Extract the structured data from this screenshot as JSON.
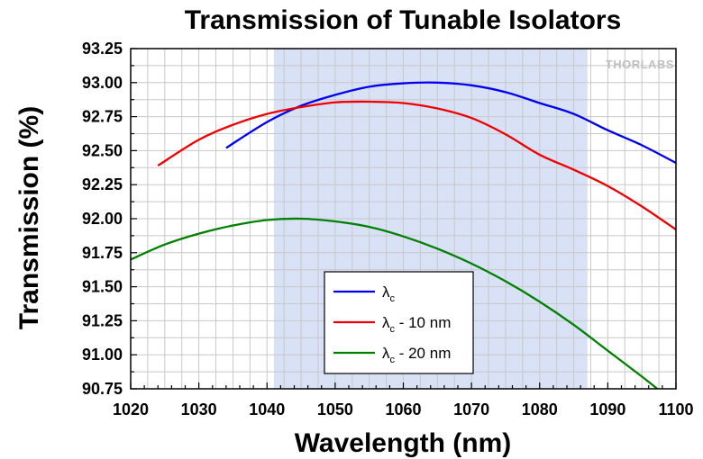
{
  "logo": "THORLABS",
  "chart_data": {
    "type": "line",
    "title": "Transmission of Tunable Isolators",
    "xlabel": "Wavelength (nm)",
    "ylabel": "Transmission (%)",
    "xlim": [
      1020,
      1100
    ],
    "ylim": [
      90.75,
      93.25
    ],
    "xticks": [
      1020,
      1030,
      1040,
      1050,
      1060,
      1070,
      1080,
      1090,
      1100
    ],
    "yticks": [
      "90.75",
      "91.00",
      "91.25",
      "91.50",
      "91.75",
      "92.00",
      "92.25",
      "92.50",
      "92.75",
      "93.00",
      "93.25"
    ],
    "grid": true,
    "highlight_band": {
      "x_start": 1041,
      "x_end": 1087,
      "color": "#d9e1f7"
    },
    "legend_position": "bottom-center",
    "series": [
      {
        "name": "λc",
        "legend_symbol": "λ",
        "legend_sub": "c",
        "legend_suffix": "",
        "color": "#0000ee",
        "x": [
          1034,
          1040,
          1045,
          1050,
          1055,
          1060,
          1065,
          1070,
          1075,
          1080,
          1085,
          1090,
          1095,
          1100
        ],
        "y": [
          92.52,
          92.71,
          92.83,
          92.91,
          92.97,
          92.995,
          93.0,
          92.98,
          92.93,
          92.85,
          92.77,
          92.65,
          92.54,
          92.41
        ]
      },
      {
        "name": "λc - 10 nm",
        "legend_symbol": "λ",
        "legend_sub": "c",
        "legend_suffix": " - 10 nm",
        "color": "#ee0000",
        "x": [
          1024,
          1030,
          1035,
          1040,
          1045,
          1050,
          1055,
          1060,
          1065,
          1070,
          1075,
          1080,
          1085,
          1090,
          1095,
          1100
        ],
        "y": [
          92.39,
          92.58,
          92.69,
          92.77,
          92.82,
          92.855,
          92.86,
          92.85,
          92.81,
          92.74,
          92.62,
          92.47,
          92.36,
          92.24,
          92.09,
          91.92
        ]
      },
      {
        "name": "λc - 20 nm",
        "legend_symbol": "λ",
        "legend_sub": "c",
        "legend_suffix": " - 20 nm",
        "color": "#008000",
        "x": [
          1020,
          1025,
          1030,
          1035,
          1040,
          1045,
          1050,
          1055,
          1060,
          1065,
          1070,
          1075,
          1080,
          1085,
          1090,
          1095,
          1097.5
        ],
        "y": [
          91.7,
          91.81,
          91.89,
          91.95,
          91.99,
          92.0,
          91.98,
          91.94,
          91.87,
          91.78,
          91.67,
          91.54,
          91.39,
          91.22,
          91.03,
          90.84,
          90.74
        ]
      }
    ]
  }
}
